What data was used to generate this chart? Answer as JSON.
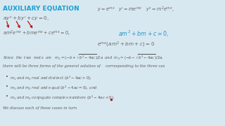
{
  "title": "AUXILIARY EQUATION",
  "title_color": "#1a9fd4",
  "title_fontsize": 6.5,
  "bg_color": "#d8e8f0",
  "eq1": "$ay'' + by' + cy = 0,$",
  "eq2": "$am^2e^{mx} + bme^{mx} + ce^{mx} = 0,$",
  "eq_top_right": "$y = e^{mx} \\quad y' = me^{mx} \\quad y'' = m^2e^{mx},$",
  "eq_aux1": "$am^2 + bm + c = 0,$",
  "eq_aux2": "$e^{mx}(am^2 + bm + c) = 0$",
  "roots_line": "Since  the  two  roots  are   $m_1 = (-b + \\sqrt{b^2 - 4ac})/2a$  and  $m_2 = (-b - \\sqrt{b^2 - 4ac})/2a,$",
  "para1": "there will be three forms of the general solution of    corresponding to the three cas",
  "bullet1": "$m_1$ and $m_2$ real and distinct $(b^2 - 4ac > 0),$",
  "bullet2": "$m_1$ and $m_2$ real and equal $(b^2 - 4ac = 0),$ and",
  "bullet3": "$m_1$ and $m_2$ conjugate complex numbers $(b^2 - 4ac < 0).$",
  "closing": "We discuss each of these cases in turn",
  "arrow_color": "#bb1111",
  "math_color_dark": "#666666",
  "math_color_blue": "#2299cc",
  "text_color": "#555555"
}
